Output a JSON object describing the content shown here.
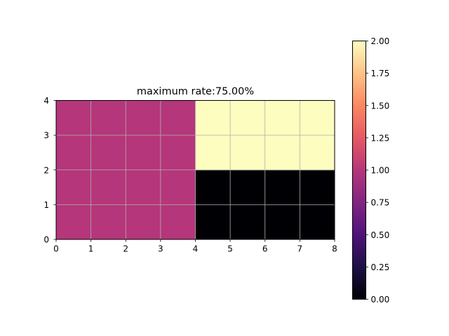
{
  "chart_data": {
    "type": "heatmap",
    "title": "maximum rate:75.00%",
    "xlabel": "",
    "ylabel": "",
    "xlim": [
      0,
      8
    ],
    "ylim": [
      0,
      4
    ],
    "x_ticks": [
      "0",
      "1",
      "2",
      "3",
      "4",
      "5",
      "6",
      "7",
      "8"
    ],
    "y_ticks": [
      "0",
      "1",
      "2",
      "3",
      "4"
    ],
    "grid": true,
    "grid_color": "#b0b0b0",
    "colormap": "magma",
    "color_range": [
      0,
      2
    ],
    "colorbar_ticks": [
      "0.00",
      "0.25",
      "0.50",
      "0.75",
      "1.00",
      "1.25",
      "1.50",
      "1.75",
      "2.00"
    ],
    "rows_bottom_to_top": [
      [
        1,
        1,
        1,
        1,
        0,
        0,
        0,
        0
      ],
      [
        1,
        1,
        1,
        1,
        0,
        0,
        0,
        0
      ],
      [
        1,
        1,
        1,
        1,
        2,
        2,
        2,
        2
      ],
      [
        1,
        1,
        1,
        1,
        2,
        2,
        2,
        2
      ]
    ]
  }
}
